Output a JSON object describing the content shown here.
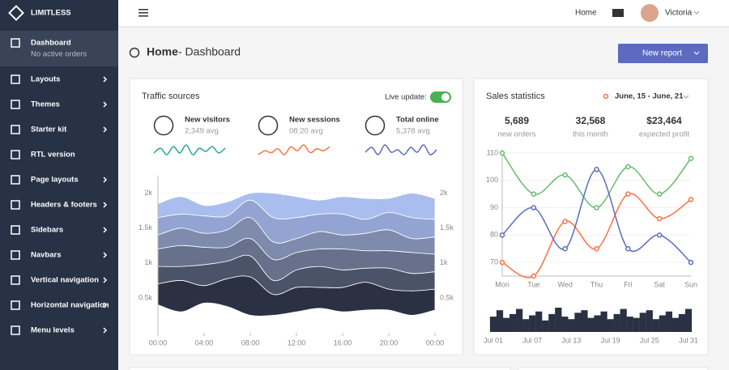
{
  "sidebar": {
    "brand": "LIMITLESS",
    "items": [
      {
        "label": "Dashboard",
        "sub": "No active orders"
      },
      {
        "label": "Layouts"
      },
      {
        "label": "Themes"
      },
      {
        "label": "Starter kit"
      },
      {
        "label": "RTL version"
      },
      {
        "label": "Page layouts"
      },
      {
        "label": "Headers & footers"
      },
      {
        "label": "Sidebars"
      },
      {
        "label": "Navbars"
      },
      {
        "label": "Vertical navigation"
      },
      {
        "label": "Horizontal navigation"
      },
      {
        "label": "Menu levels"
      }
    ]
  },
  "navbar": {
    "home": "Home",
    "user": "Victoria"
  },
  "page_header": {
    "title": "Home",
    "subtitle": "- Dashboard",
    "button": "New report"
  },
  "traffic": {
    "title": "Traffic sources",
    "live_label": "Live update:",
    "stats": [
      {
        "label": "New visitors",
        "value": "2,349 avg",
        "color": "#26a69a",
        "sparkline": [
          3,
          6,
          2,
          7,
          3,
          8,
          2,
          6,
          4,
          7,
          3,
          6
        ]
      },
      {
        "label": "New sessions",
        "value": "08:20 avg",
        "color": "#ff7043",
        "sparkline": [
          2,
          4,
          3,
          5,
          2,
          6,
          4,
          7,
          3,
          5,
          4,
          6
        ]
      },
      {
        "label": "Total online",
        "value": "5,378 avg",
        "color": "#5c6bc0",
        "sparkline": [
          4,
          6,
          3,
          7,
          4,
          5,
          3,
          6,
          4,
          7,
          3,
          5
        ]
      }
    ]
  },
  "sales": {
    "title": "Sales statistics",
    "range": "June, 15 - June, 21",
    "stats": [
      {
        "value": "5,689",
        "label": "new orders"
      },
      {
        "value": "32,568",
        "label": "this month"
      },
      {
        "value": "$23,464",
        "label": "expected profit"
      }
    ]
  },
  "chart_data": [
    {
      "type": "stream",
      "categories": [
        "00:00",
        null,
        "04:00",
        null,
        "08:00",
        null,
        "12:00",
        null,
        "16:00",
        null,
        "20:00",
        null,
        "00:00"
      ],
      "ylim": [
        0,
        2250
      ],
      "yticks": [
        {
          "value": 500,
          "label": "0.5k"
        },
        {
          "value": 1000,
          "label": "1k"
        },
        {
          "value": 1500,
          "label": "1.5k"
        },
        {
          "value": 2000,
          "label": "2k"
        }
      ],
      "series": [
        {
          "color": "#2b3142",
          "values": [
            300,
            450,
            250,
            400,
            550,
            300,
            350,
            300,
            350,
            400,
            300,
            350,
            300
          ]
        },
        {
          "color": "#4a5368",
          "values": [
            250,
            200,
            300,
            250,
            300,
            200,
            250,
            300,
            250,
            200,
            300,
            250,
            250
          ]
        },
        {
          "color": "#67718c",
          "values": [
            250,
            300,
            250,
            200,
            250,
            300,
            250,
            250,
            300,
            250,
            250,
            300,
            250
          ]
        },
        {
          "color": "#7f8bac",
          "values": [
            200,
            250,
            200,
            250,
            300,
            250,
            200,
            250,
            200,
            250,
            300,
            200,
            250
          ]
        },
        {
          "color": "#93a4d2",
          "values": [
            250,
            200,
            250,
            200,
            250,
            350,
            300,
            250,
            300,
            200,
            250,
            300,
            250
          ]
        },
        {
          "color": "#a9bdee",
          "values": [
            200,
            250,
            150,
            200,
            100,
            350,
            300,
            200,
            250,
            300,
            200,
            350,
            300
          ]
        }
      ]
    },
    {
      "type": "line",
      "categories": [
        "Mon",
        "Tue",
        "Wed",
        "Thu",
        "Fri",
        "Sat",
        "Sun"
      ],
      "ylim": [
        65,
        110
      ],
      "yticks": [
        70,
        80,
        90,
        100,
        110
      ],
      "series": [
        {
          "color": "#66bb6a",
          "values": [
            110,
            95,
            102,
            90,
            105,
            95,
            108
          ]
        },
        {
          "color": "#ff7043",
          "values": [
            70,
            65,
            85,
            75,
            95,
            86,
            93
          ]
        },
        {
          "color": "#5c6bc0",
          "values": [
            80,
            90,
            75,
            104,
            75,
            80,
            70
          ]
        }
      ]
    },
    {
      "type": "bar",
      "color": "#2b3142",
      "categories": [
        "Jul 01",
        null,
        null,
        null,
        null,
        null,
        "Jul 07",
        null,
        null,
        null,
        null,
        null,
        "Jul 13",
        null,
        null,
        null,
        null,
        null,
        "Jul 19",
        null,
        null,
        null,
        null,
        null,
        "Jul 25",
        null,
        null,
        null,
        null,
        null,
        "Jul 31"
      ],
      "values": [
        60,
        85,
        55,
        70,
        90,
        50,
        65,
        80,
        45,
        70,
        95,
        60,
        50,
        75,
        85,
        55,
        65,
        80,
        50,
        70,
        90,
        60,
        55,
        75,
        85,
        50,
        65,
        80,
        55,
        70,
        90
      ]
    }
  ]
}
